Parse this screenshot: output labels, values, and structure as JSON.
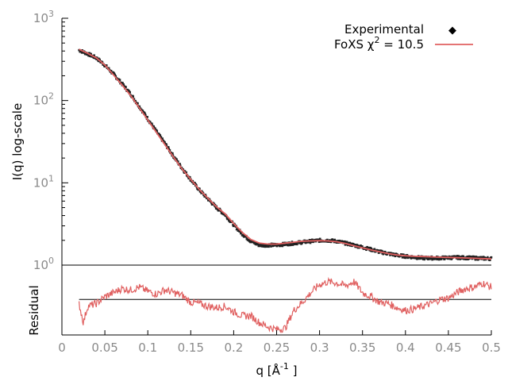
{
  "chart_data": [
    {
      "type": "line",
      "panel": "main",
      "scale_y": "log",
      "ylabel": "I(q) log-scale",
      "xlim": [
        0,
        0.5
      ],
      "ylim": [
        1,
        1000
      ],
      "yticks": [
        {
          "base": "10",
          "exp": "0"
        },
        {
          "base": "10",
          "exp": "1"
        },
        {
          "base": "10",
          "exp": "2"
        },
        {
          "base": "10",
          "exp": "3"
        }
      ],
      "legend_position": "top-right",
      "series": [
        {
          "name": "Experimental",
          "style": "points",
          "color": "#222222",
          "x": [
            0.02,
            0.03,
            0.04,
            0.05,
            0.06,
            0.07,
            0.08,
            0.09,
            0.1,
            0.11,
            0.12,
            0.13,
            0.14,
            0.15,
            0.16,
            0.17,
            0.18,
            0.19,
            0.2,
            0.21,
            0.22,
            0.23,
            0.24,
            0.25,
            0.26,
            0.27,
            0.28,
            0.29,
            0.3,
            0.31,
            0.32,
            0.33,
            0.34,
            0.35,
            0.36,
            0.37,
            0.38,
            0.39,
            0.4,
            0.41,
            0.42,
            0.43,
            0.44,
            0.45,
            0.46,
            0.47,
            0.48,
            0.49,
            0.5
          ],
          "y": [
            410,
            370,
            330,
            270,
            210,
            160,
            120,
            85,
            60,
            42,
            30,
            21,
            15,
            11,
            8.2,
            6.4,
            5.0,
            4.1,
            3.1,
            2.4,
            1.95,
            1.75,
            1.75,
            1.75,
            1.8,
            1.85,
            1.9,
            1.95,
            2.0,
            2.0,
            1.95,
            1.85,
            1.75,
            1.65,
            1.55,
            1.45,
            1.38,
            1.32,
            1.28,
            1.25,
            1.22,
            1.22,
            1.22,
            1.23,
            1.24,
            1.23,
            1.22,
            1.21,
            1.2
          ]
        },
        {
          "name": "FoXS χ² = 10.5",
          "style": "line",
          "color": "#e06060",
          "x": [
            0.02,
            0.03,
            0.04,
            0.05,
            0.06,
            0.07,
            0.08,
            0.09,
            0.1,
            0.11,
            0.12,
            0.13,
            0.14,
            0.15,
            0.16,
            0.17,
            0.18,
            0.19,
            0.2,
            0.21,
            0.22,
            0.23,
            0.24,
            0.25,
            0.26,
            0.27,
            0.28,
            0.29,
            0.3,
            0.31,
            0.32,
            0.33,
            0.34,
            0.35,
            0.36,
            0.37,
            0.38,
            0.39,
            0.4,
            0.41,
            0.42,
            0.43,
            0.44,
            0.45,
            0.46,
            0.47,
            0.48,
            0.49,
            0.5
          ],
          "y": [
            420,
            375,
            330,
            270,
            205,
            155,
            115,
            82,
            58,
            41,
            29,
            20.5,
            14.7,
            11,
            8.3,
            6.5,
            5.1,
            4.2,
            3.2,
            2.5,
            2.05,
            1.85,
            1.8,
            1.8,
            1.85,
            1.9,
            1.95,
            1.97,
            1.98,
            1.97,
            1.92,
            1.83,
            1.72,
            1.62,
            1.53,
            1.45,
            1.38,
            1.33,
            1.3,
            1.28,
            1.27,
            1.26,
            1.25,
            1.24,
            1.23,
            1.22,
            1.21,
            1.2,
            1.19
          ]
        }
      ],
      "legend": {
        "experimental_label": "Experimental",
        "fit_label_prefix": "FoXS χ",
        "fit_label_sup": "2",
        "fit_label_suffix": " = 10.5"
      }
    },
    {
      "type": "line",
      "panel": "residual",
      "ylabel": "Residual",
      "xlabel_prefix": "q [Å",
      "xlabel_sup": "-1",
      "xlabel_suffix": " ]",
      "xlim": [
        0,
        0.5
      ],
      "ylim": [
        -2.6,
        2.4
      ],
      "x_ticks": [
        "0",
        "0.05",
        "0.1",
        "0.15",
        "0.2",
        "0.25",
        "0.3",
        "0.35",
        "0.4",
        "0.45",
        "0.5"
      ],
      "zero_line": 0,
      "series": [
        {
          "name": "Residual",
          "color": "#e06060",
          "x": [
            0.02,
            0.025,
            0.03,
            0.04,
            0.05,
            0.06,
            0.07,
            0.08,
            0.09,
            0.1,
            0.11,
            0.12,
            0.13,
            0.14,
            0.15,
            0.16,
            0.17,
            0.18,
            0.19,
            0.2,
            0.21,
            0.22,
            0.23,
            0.24,
            0.25,
            0.26,
            0.27,
            0.28,
            0.29,
            0.3,
            0.31,
            0.32,
            0.33,
            0.34,
            0.35,
            0.36,
            0.37,
            0.38,
            0.39,
            0.4,
            0.41,
            0.42,
            0.43,
            0.44,
            0.45,
            0.46,
            0.47,
            0.48,
            0.49,
            0.5
          ],
          "y": [
            -0.3,
            -1.7,
            -0.5,
            -0.3,
            0.2,
            0.5,
            0.8,
            0.7,
            0.9,
            0.6,
            0.4,
            0.7,
            0.5,
            0.3,
            -0.2,
            -0.3,
            -0.5,
            -0.6,
            -0.5,
            -0.9,
            -1.2,
            -1.2,
            -1.7,
            -2.0,
            -2.2,
            -2.1,
            -0.8,
            -0.2,
            0.5,
            1.1,
            1.3,
            1.2,
            1.0,
            1.3,
            0.5,
            0.2,
            -0.2,
            -0.3,
            -0.6,
            -0.8,
            -0.7,
            -0.5,
            -0.3,
            0.0,
            0.1,
            0.5,
            0.8,
            0.9,
            1.2,
            0.9
          ]
        }
      ]
    }
  ]
}
